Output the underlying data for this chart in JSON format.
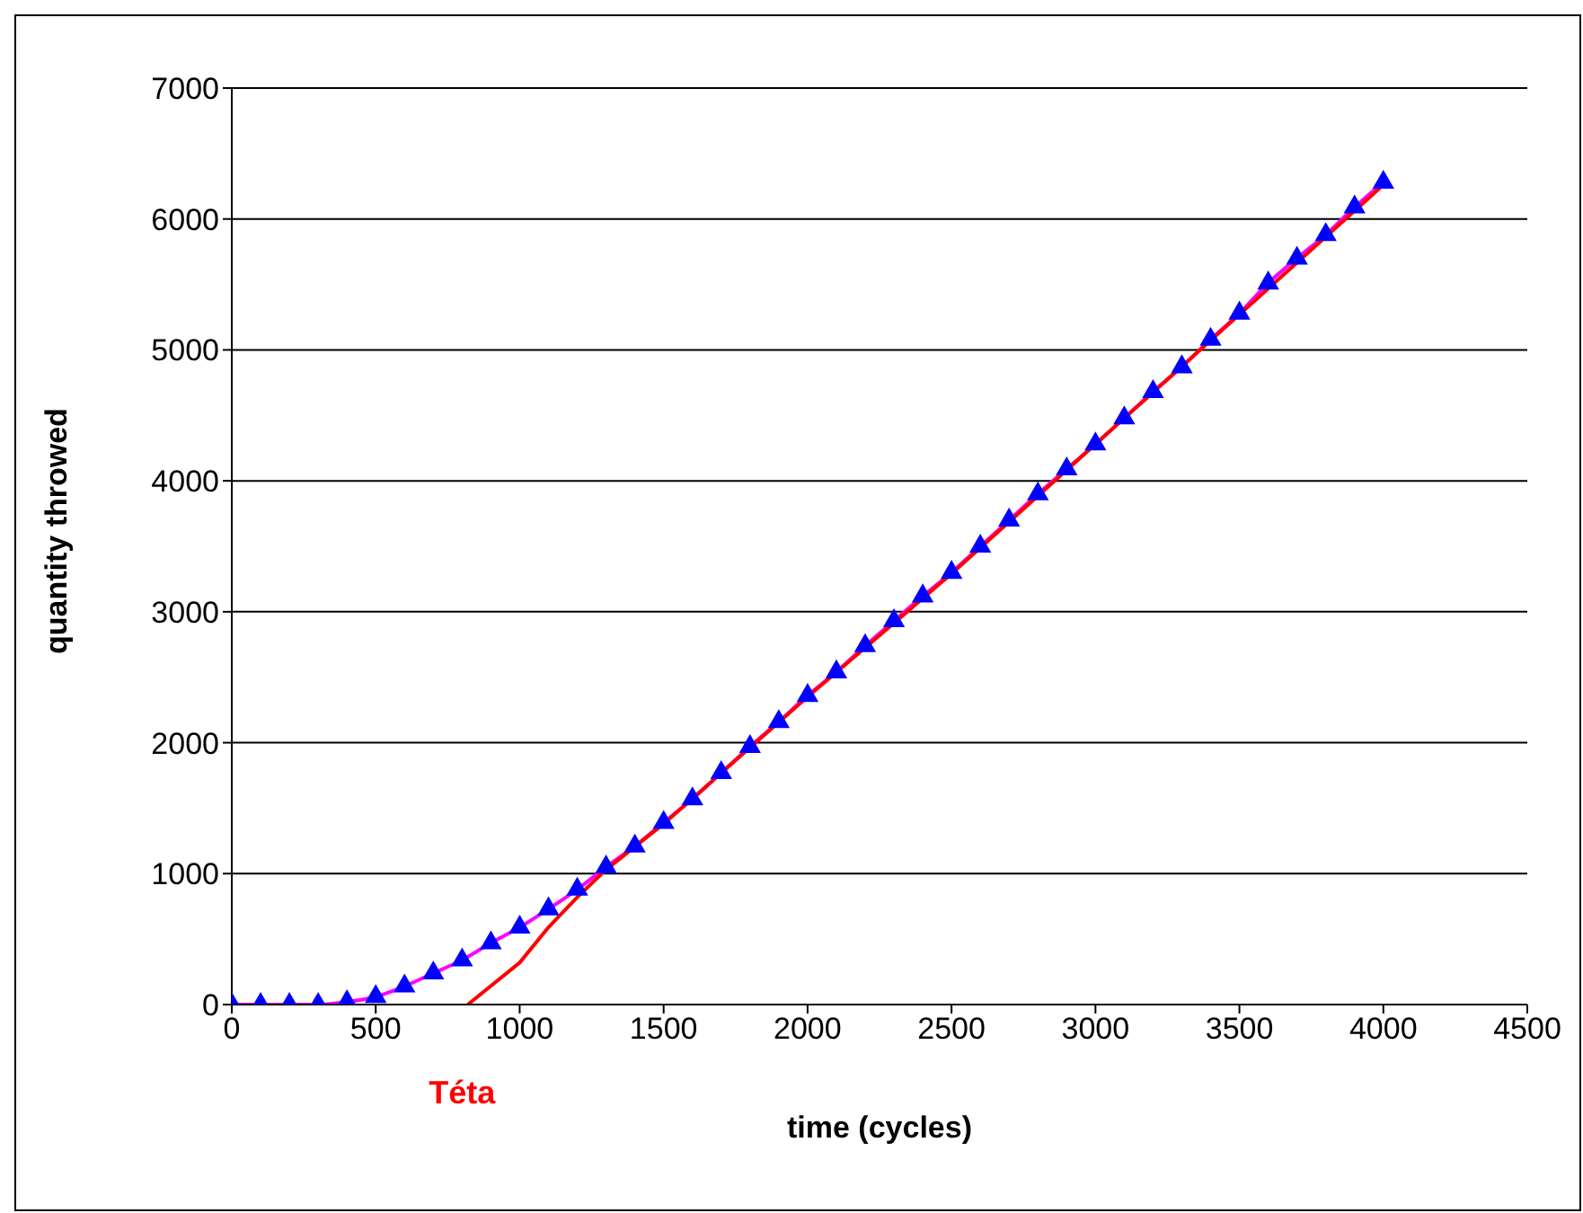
{
  "chart_data": {
    "type": "line",
    "xlabel": "time (cycles)",
    "ylabel": "quantity throwed",
    "annotations": [
      {
        "text": "Téta",
        "x": 800,
        "y": 0
      }
    ],
    "xlim": [
      0,
      4500
    ],
    "xticks": [
      0,
      500,
      1000,
      1500,
      2000,
      2500,
      3000,
      3500,
      4000,
      4500
    ],
    "ylim": [
      0,
      7000
    ],
    "yticks": [
      0,
      1000,
      2000,
      3000,
      4000,
      5000,
      6000,
      7000
    ],
    "grid": "y",
    "series": [
      {
        "color": "#ff00ff",
        "marker": "none",
        "x": [
          0,
          100,
          200,
          300,
          400,
          500,
          600,
          700,
          800,
          900,
          1000,
          1100,
          1200,
          1300,
          1400,
          1500,
          1600,
          1700,
          1800,
          1900,
          2000,
          2100,
          2200,
          2300,
          2400,
          2500,
          2600,
          2700,
          2800,
          2900,
          3000,
          3100,
          3200,
          3300,
          3400,
          3500,
          3600,
          3700,
          3800,
          3900,
          4000
        ],
        "values": [
          0,
          0,
          0,
          0,
          20,
          60,
          140,
          240,
          340,
          470,
          590,
          730,
          880,
          1050,
          1210,
          1390,
          1570,
          1770,
          1970,
          2160,
          2360,
          2540,
          2740,
          2930,
          3120,
          3300,
          3500,
          3700,
          3900,
          4090,
          4280,
          4480,
          4680,
          4870,
          5080,
          5280,
          5510,
          5700,
          5880,
          6090,
          6280
        ]
      },
      {
        "color": "#ff0000",
        "marker": "none",
        "x": [
          820,
          1000,
          1100,
          1200,
          1300,
          1500,
          2000,
          2500,
          3000,
          3500,
          4000
        ],
        "values": [
          0,
          320,
          590,
          820,
          1030,
          1380,
          2350,
          3290,
          4280,
          5270,
          6260
        ]
      },
      {
        "type": "scatter",
        "color": "#0000ff",
        "marker": "triangle",
        "x": [
          0,
          100,
          200,
          300,
          400,
          500,
          600,
          700,
          800,
          900,
          1000,
          1100,
          1200,
          1300,
          1400,
          1500,
          1600,
          1700,
          1800,
          1900,
          2000,
          2100,
          2200,
          2300,
          2400,
          2500,
          2600,
          2700,
          2800,
          2900,
          3000,
          3100,
          3200,
          3300,
          3400,
          3500,
          3600,
          3700,
          3800,
          3900,
          4000
        ],
        "values": [
          0,
          0,
          0,
          0,
          20,
          60,
          140,
          240,
          340,
          470,
          590,
          730,
          880,
          1050,
          1210,
          1390,
          1570,
          1770,
          1970,
          2160,
          2360,
          2540,
          2740,
          2930,
          3120,
          3300,
          3500,
          3700,
          3900,
          4090,
          4280,
          4480,
          4680,
          4870,
          5080,
          5280,
          5510,
          5700,
          5880,
          6090,
          6280
        ]
      }
    ]
  }
}
